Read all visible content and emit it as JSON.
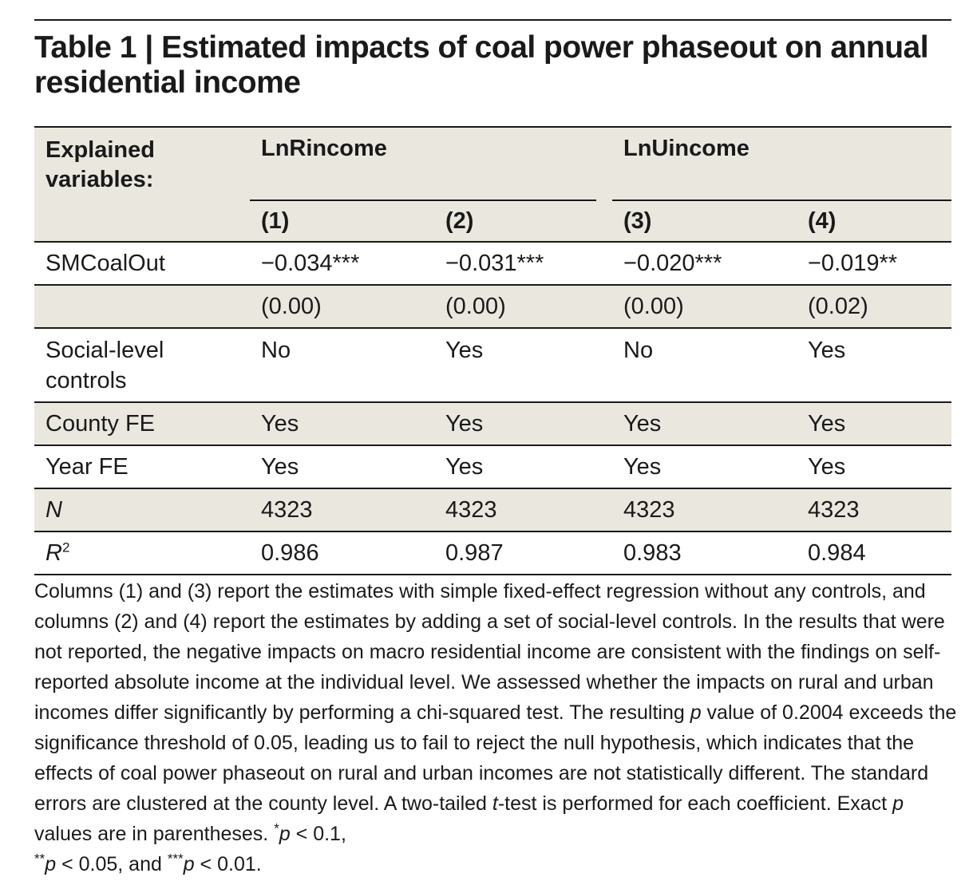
{
  "title": "Table 1 | Estimated impacts of coal power phaseout on annual residential income",
  "header": {
    "explained_label": "Explained variables:",
    "groups": [
      "LnRincome",
      "LnUincome"
    ],
    "columns": [
      "(1)",
      "(2)",
      "(3)",
      "(4)"
    ]
  },
  "rows": {
    "smcoal": {
      "label": "SMCoalOut",
      "values": [
        "−0.034***",
        "−0.031***",
        "−0.020***",
        "−0.019**"
      ]
    },
    "pvals": {
      "label": "",
      "values": [
        "(0.00)",
        "(0.00)",
        "(0.00)",
        "(0.02)"
      ]
    },
    "social": {
      "label": "Social-level controls",
      "values": [
        "No",
        "Yes",
        "No",
        "Yes"
      ]
    },
    "county": {
      "label": "County FE",
      "values": [
        "Yes",
        "Yes",
        "Yes",
        "Yes"
      ]
    },
    "year": {
      "label": "Year FE",
      "values": [
        "Yes",
        "Yes",
        "Yes",
        "Yes"
      ]
    },
    "n": {
      "label": "N",
      "values": [
        "4323",
        "4323",
        "4323",
        "4323"
      ]
    },
    "r2": {
      "label_base": "R",
      "label_sup": "2",
      "values": [
        "0.986",
        "0.987",
        "0.983",
        "0.984"
      ]
    }
  },
  "note": {
    "part1": "Columns (1) and (3) report the estimates with simple fixed-effect regression without any controls, and columns (2) and (4) report the estimates by adding a set of social-level controls. In the results that were not reported, the negative impacts on macro residential income are consistent with the findings on self-reported absolute income at the individual level. We assessed whether the impacts on rural and urban incomes differ significantly by performing a chi-squared test. The resulting ",
    "p1": "p",
    "part2": " value of 0.2004 exceeds the significance threshold of 0.05, leading us to fail to reject the null hypothesis, which indicates that the effects of coal power phaseout on rural and urban incomes are not statistically different. The standard errors are clustered at the county level. A two-tailed ",
    "t": "t",
    "part3": "-test is performed for each coefficient. Exact ",
    "p2": "p",
    "part4": " values are in parentheses. ",
    "s1_sup": "*",
    "s1_p": "p",
    "s1_txt": " < 0.1,",
    "s2_sup": "**",
    "s2_p": "p",
    "s2_txt": " < 0.05, and ",
    "s3_sup": "***",
    "s3_p": "p",
    "s3_txt": " < 0.01."
  }
}
